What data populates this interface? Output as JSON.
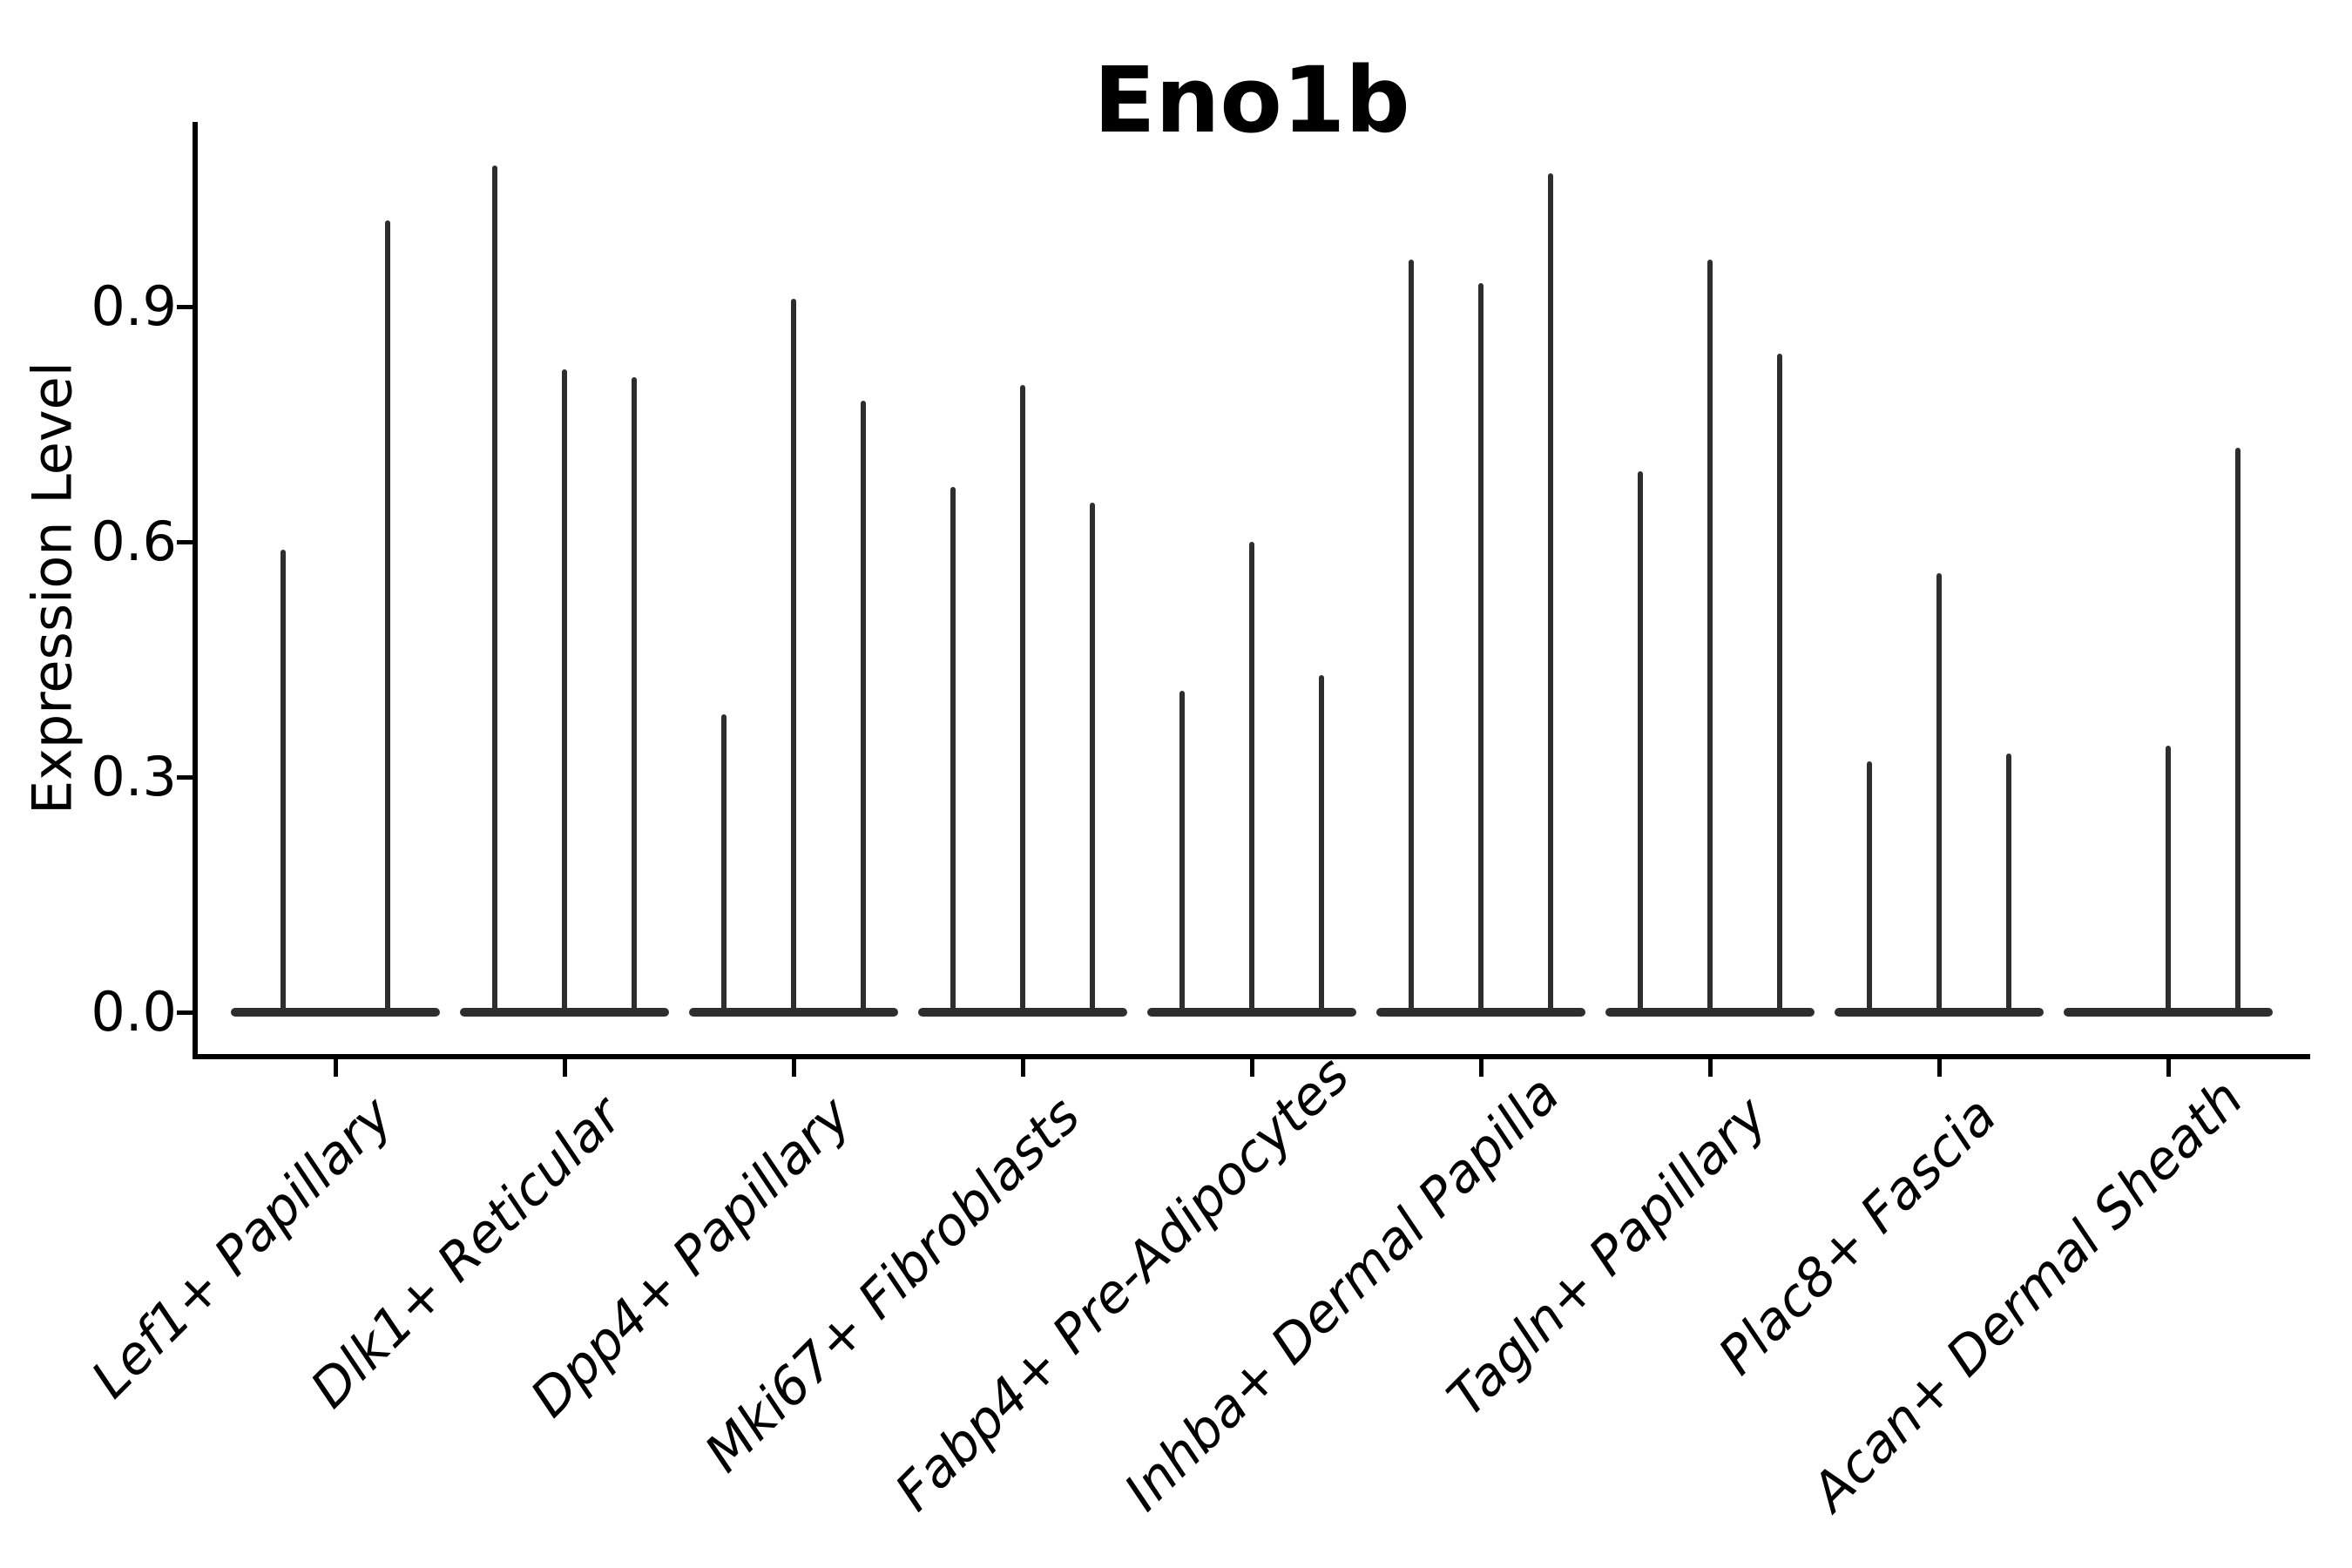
{
  "title": "Eno1b",
  "y_axis": {
    "label": "Expression Level",
    "tick_labels": [
      "0.0",
      "0.3",
      "0.6",
      "0.9"
    ]
  },
  "chart_data": {
    "type": "violin",
    "title": "Eno1b",
    "xlabel": "",
    "ylabel": "Expression Level",
    "ylim": [
      -0.05,
      1.14
    ],
    "yticks": [
      0.0,
      0.3,
      0.6,
      0.9
    ],
    "grid": false,
    "legend": "none",
    "violin_color": "#2e2e2e",
    "axis_color": "#000000",
    "description": "Stacked-identity violin plot; each category shows flat violins at expression 0 with thin density spikes reaching the listed maxima",
    "categories": [
      "Lef1+ Papillary",
      "Dlk1+ Reticular",
      "Dpp4+ Papillary",
      "Mki67+ Fibroblasts",
      "Fabp4+ Pre-Adipocytes",
      "Inhba+ Dermal Papilla",
      "Tagln+ Papillary",
      "Plac8+ Fascia",
      "Acan+ Dermal Sheath"
    ],
    "series": [
      {
        "category": "Lef1+ Papillary",
        "spikes": [
          {
            "offset": -60,
            "max": 0.59
          },
          {
            "offset": 60,
            "max": 1.01
          }
        ]
      },
      {
        "category": "Dlk1+ Reticular",
        "spikes": [
          {
            "offset": -80,
            "max": 1.08
          },
          {
            "offset": 0,
            "max": 0.82
          },
          {
            "offset": 80,
            "max": 0.81
          }
        ]
      },
      {
        "category": "Dpp4+ Papillary",
        "spikes": [
          {
            "offset": -80,
            "max": 0.38
          },
          {
            "offset": 0,
            "max": 0.91
          },
          {
            "offset": 80,
            "max": 0.78
          }
        ]
      },
      {
        "category": "Mki67+ Fibroblasts",
        "spikes": [
          {
            "offset": -80,
            "max": 0.67
          },
          {
            "offset": 0,
            "max": 0.8
          },
          {
            "offset": 80,
            "max": 0.65
          }
        ]
      },
      {
        "category": "Fabp4+ Pre-Adipocytes",
        "spikes": [
          {
            "offset": -80,
            "max": 0.41
          },
          {
            "offset": 0,
            "max": 0.6
          },
          {
            "offset": 80,
            "max": 0.43
          }
        ]
      },
      {
        "category": "Inhba+ Dermal Papilla",
        "spikes": [
          {
            "offset": -80,
            "max": 0.96
          },
          {
            "offset": 0,
            "max": 0.93
          },
          {
            "offset": 80,
            "max": 1.07
          }
        ]
      },
      {
        "category": "Tagln+ Papillary",
        "spikes": [
          {
            "offset": -80,
            "max": 0.69
          },
          {
            "offset": 0,
            "max": 0.96
          },
          {
            "offset": 80,
            "max": 0.84
          }
        ]
      },
      {
        "category": "Plac8+ Fascia",
        "spikes": [
          {
            "offset": -80,
            "max": 0.32
          },
          {
            "offset": 0,
            "max": 0.56
          },
          {
            "offset": 80,
            "max": 0.33
          }
        ]
      },
      {
        "category": "Acan+ Dermal Sheath",
        "spikes": [
          {
            "offset": 0,
            "max": 0.34
          },
          {
            "offset": 80,
            "max": 0.72
          }
        ]
      }
    ]
  }
}
